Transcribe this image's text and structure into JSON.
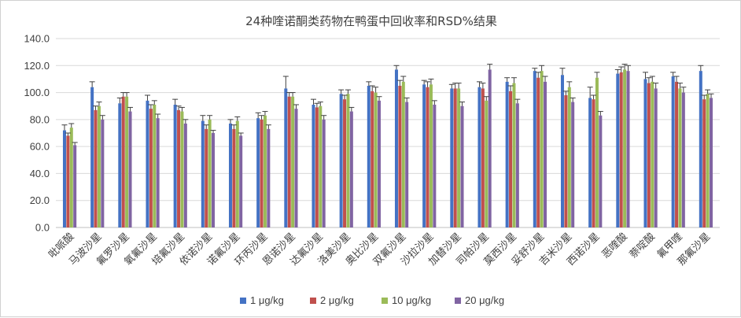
{
  "chart_data": {
    "type": "bar",
    "title": "24种喹诺酮类药物在鸭蛋中回收率和RSD%结果",
    "xlabel": "",
    "ylabel": "",
    "ylim": [
      0,
      140
    ],
    "yticks": [
      "0.0",
      "20.0",
      "40.0",
      "60.0",
      "80.0",
      "100.0",
      "120.0",
      "140.0"
    ],
    "grid": true,
    "legend_position": "bottom",
    "categories": [
      "吡哌酸",
      "马波沙星",
      "氟罗沙星",
      "氧氟沙星",
      "培氟沙星",
      "依诺沙星",
      "诺氟沙星",
      "环丙沙星",
      "恩诺沙星",
      "达氟沙星",
      "洛美沙星",
      "奥比沙星",
      "双氟沙星",
      "沙拉沙星",
      "加替沙星",
      "司帕沙星",
      "莫西沙星",
      "妥舒沙星",
      "吉米沙星",
      "西诺沙星",
      "恶喹酸",
      "萘啶酸",
      "氟甲喹",
      "那氟沙星"
    ],
    "series": [
      {
        "name": "1 μg/kg",
        "color": "#4472c4",
        "values": [
          72,
          104,
          92,
          94,
          91,
          79,
          77,
          81,
          103,
          91,
          99,
          105,
          117,
          106,
          103,
          104,
          108,
          116,
          113,
          96,
          114,
          110,
          112,
          116
        ],
        "errors": [
          4,
          4,
          4,
          4,
          4,
          4,
          3,
          4,
          9,
          4,
          3,
          3,
          3,
          3,
          3,
          4,
          3,
          2,
          5,
          8,
          3,
          5,
          3,
          4
        ]
      },
      {
        "name": "2 μg/kg",
        "color": "#c0504d",
        "values": [
          68,
          87,
          97,
          88,
          87,
          73,
          73,
          80,
          97,
          89,
          95,
          101,
          105,
          104,
          103,
          103,
          101,
          111,
          98,
          95,
          115,
          107,
          108,
          95
        ]
      },
      {
        "name": "10 μg/kg",
        "color": "#9bbb59",
        "values": [
          74,
          90,
          97,
          91,
          86,
          80,
          79,
          83,
          97,
          90,
          99,
          100,
          108,
          106,
          103,
          94,
          107,
          116,
          104,
          111,
          117,
          108,
          103,
          99
        ]
      },
      {
        "name": "20 μg/kg",
        "color": "#8064a2",
        "values": [
          61,
          80,
          86,
          81,
          77,
          70,
          68,
          73,
          88,
          80,
          86,
          94,
          93,
          91,
          90,
          117,
          92,
          108,
          93,
          83,
          116,
          103,
          100,
          96
        ]
      }
    ]
  }
}
